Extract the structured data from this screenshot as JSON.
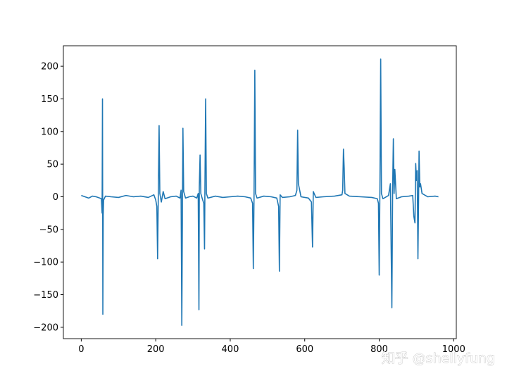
{
  "chart_data": {
    "type": "line",
    "x": [
      0,
      10,
      20,
      30,
      40,
      50,
      54,
      56,
      57,
      58,
      59,
      60,
      65,
      80,
      100,
      120,
      140,
      160,
      180,
      195,
      200,
      203,
      205,
      207,
      209,
      211,
      215,
      220,
      225,
      240,
      255,
      265,
      268,
      270,
      272,
      273,
      275,
      280,
      290,
      300,
      310,
      314,
      316,
      317,
      319,
      321,
      325,
      329,
      331,
      332,
      334,
      336,
      340,
      360,
      380,
      400,
      420,
      440,
      455,
      460,
      462,
      464,
      466,
      468,
      472,
      490,
      510,
      525,
      530,
      532,
      534,
      540,
      560,
      575,
      579,
      581,
      583,
      590,
      610,
      618,
      621,
      623,
      630,
      650,
      680,
      700,
      702,
      704,
      706,
      708,
      720,
      750,
      780,
      795,
      798,
      800,
      802,
      804,
      806,
      810,
      825,
      830,
      834,
      836,
      838,
      840,
      842,
      846,
      860,
      880,
      890,
      893,
      896,
      898,
      900,
      902,
      904,
      906,
      907,
      909,
      911,
      915,
      930,
      950,
      959
    ],
    "series": [
      {
        "color": "#1f77b4",
        "values": [
          2,
          0,
          -2,
          1,
          0,
          -2,
          -3,
          -25,
          150,
          -180,
          -28,
          -5,
          1,
          0,
          -1,
          2,
          0,
          1,
          -1,
          3,
          -5,
          -15,
          -95,
          10,
          109,
          5,
          -8,
          8,
          -3,
          0,
          1,
          -2,
          10,
          -197,
          12,
          105,
          8,
          -2,
          0,
          1,
          -2,
          5,
          -173,
          15,
          64,
          5,
          -3,
          -10,
          -80,
          10,
          150,
          5,
          -2,
          1,
          -1,
          0,
          1,
          0,
          -2,
          -10,
          -110,
          5,
          194,
          5,
          -2,
          1,
          0,
          -2,
          -15,
          -114,
          3,
          -1,
          0,
          2,
          10,
          102,
          20,
          0,
          -2,
          -8,
          -77,
          8,
          -1,
          0,
          1,
          3,
          10,
          73,
          44,
          5,
          1,
          0,
          -1,
          -3,
          -10,
          -120,
          20,
          211,
          5,
          -3,
          2,
          20,
          -170,
          10,
          89,
          5,
          42,
          -3,
          0,
          1,
          2,
          -30,
          -40,
          51,
          25,
          40,
          -95,
          10,
          70,
          15,
          20,
          5,
          0,
          1,
          0
        ]
      }
    ],
    "xlim": [
      -48,
      1007
    ],
    "ylim": [
      -217.4,
      231.4
    ],
    "xticks": [
      0,
      200,
      400,
      600,
      800,
      1000
    ],
    "yticks": [
      {
        "value": -200,
        "label": "−200"
      },
      {
        "value": -150,
        "label": "−150"
      },
      {
        "value": -100,
        "label": "−100"
      },
      {
        "value": -50,
        "label": "−50"
      },
      0,
      50,
      100,
      150,
      200
    ],
    "watermark": "知乎 @shellyfung"
  }
}
